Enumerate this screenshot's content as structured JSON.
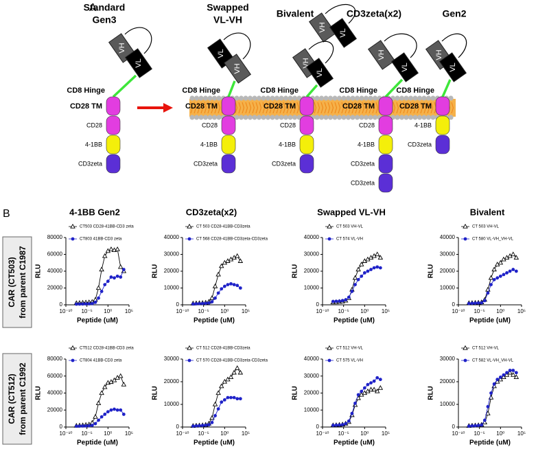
{
  "figure": {
    "panel_a": "A",
    "panel_b": "B",
    "row_labels": [
      [
        "CAR (CT503)",
        "from parent C1987"
      ],
      [
        "CAR (CT512)",
        "from parent C1992"
      ]
    ],
    "constructs": [
      {
        "title": [
          "Standard",
          "Gen3"
        ],
        "scfv": [
          [
            "VH",
            "VL"
          ]
        ],
        "domains": [
          "CD8 Hinge",
          "CD28 TM",
          "CD28",
          "4-1BB",
          "CD3zeta"
        ]
      },
      {
        "title": [
          "Swapped",
          "VL-VH"
        ],
        "scfv": [
          [
            "VL",
            "VH"
          ]
        ],
        "domains": [
          "CD8 Hinge",
          "CD28 TM",
          "CD28",
          "4-1BB",
          "CD3zeta"
        ]
      },
      {
        "title": [
          "Bivalent"
        ],
        "scfv": [
          [
            "VH",
            "VL"
          ],
          [
            "VH",
            "VL"
          ]
        ],
        "domains": [
          "CD8 Hinge",
          "CD28 TM",
          "CD28",
          "4-1BB",
          "CD3zeta"
        ]
      },
      {
        "title": [
          "CD3zeta(x2)"
        ],
        "scfv": [
          [
            "VH",
            "VL"
          ]
        ],
        "domains": [
          "CD8 Hinge",
          "CD28 TM",
          "CD28",
          "4-1BB",
          "CD3zeta",
          "CD3zeta"
        ]
      },
      {
        "title": [
          "Gen2"
        ],
        "scfv": [
          [
            "VH",
            "VL"
          ]
        ],
        "domains": [
          "CD8 Hinge",
          "CD28 TM",
          "4-1BB",
          "CD3zeta"
        ]
      }
    ]
  },
  "chart_data": [
    {
      "type": "scatter",
      "title": "4-1BB Gen2",
      "x_label": "Peptide (uM)",
      "y_label": "RLU",
      "xscale": "log",
      "xlim": [
        1e-10,
        100000.0
      ],
      "xticks": [
        {
          "value": 1e-10,
          "label": "10⁻¹⁰"
        },
        {
          "value": 1e-05,
          "label": "10⁻⁵"
        },
        {
          "value": 1,
          "label": "10⁰"
        },
        {
          "value": 100000.0,
          "label": "10⁵"
        }
      ],
      "ylim": [
        0,
        80000
      ],
      "yticks": [
        0,
        20000,
        40000,
        60000,
        80000
      ],
      "x": [
        3.16e-08,
        1.78e-07,
        1e-06,
        5.62e-06,
        3.16e-05,
        0.000178,
        0.001,
        0.00562,
        0.0316,
        0.178,
        1,
        5.62,
        31.6,
        178,
        1000,
        5620
      ],
      "series": [
        {
          "name": "CT503 CD28-41BB-CD3 zeta",
          "color": "#000000",
          "marker": "triangle-open",
          "values": [
            2000,
            2200,
            2500,
            2800,
            3000,
            3500,
            6000,
            20000,
            42000,
            58000,
            64000,
            66000,
            65000,
            66000,
            45000,
            40000
          ]
        },
        {
          "name": "CT803 41BB-CD3 zeta",
          "color": "#1f22c8",
          "marker": "circle",
          "values": [
            800,
            900,
            1000,
            1100,
            1200,
            1500,
            3000,
            8000,
            16000,
            24000,
            28000,
            33000,
            32000,
            34000,
            33000,
            42000
          ]
        }
      ]
    },
    {
      "type": "scatter",
      "title": "CD3zeta(x2)",
      "x_label": "Peptide (uM)",
      "y_label": "RLU",
      "xscale": "log",
      "xlim": [
        1e-10,
        100000.0
      ],
      "xticks": [
        {
          "value": 1e-10,
          "label": "10⁻¹⁰"
        },
        {
          "value": 1e-05,
          "label": "10⁻⁵"
        },
        {
          "value": 1,
          "label": "10⁰"
        },
        {
          "value": 100000.0,
          "label": "10⁵"
        }
      ],
      "ylim": [
        0,
        40000
      ],
      "yticks": [
        0,
        10000,
        20000,
        30000,
        40000
      ],
      "x": [
        3.16e-08,
        1.78e-07,
        1e-06,
        5.62e-06,
        3.16e-05,
        0.000178,
        0.001,
        0.00562,
        0.0316,
        0.178,
        1,
        5.62,
        31.6,
        178,
        1000,
        5620
      ],
      "series": [
        {
          "name": "CT 503 CD28-41BB-CD3zeta",
          "color": "#000000",
          "marker": "triangle-open",
          "values": [
            800,
            900,
            1000,
            1100,
            1300,
            1800,
            4000,
            11000,
            18000,
            23000,
            25000,
            26000,
            27000,
            28000,
            29000,
            26000
          ]
        },
        {
          "name": "CT 568 CD28-41BB-CD3zeta-CD3zeta",
          "color": "#1f22c8",
          "marker": "circle",
          "values": [
            500,
            600,
            700,
            800,
            900,
            1100,
            1800,
            4000,
            7000,
            9500,
            11000,
            12000,
            12500,
            12000,
            11500,
            10000
          ]
        }
      ]
    },
    {
      "type": "scatter",
      "title": "Swapped VL-VH",
      "x_label": "Peptide (uM)",
      "y_label": "RLU",
      "xscale": "log",
      "xlim": [
        1e-10,
        100000.0
      ],
      "xticks": [
        {
          "value": 1e-10,
          "label": "10⁻¹⁰"
        },
        {
          "value": 1e-05,
          "label": "10⁻⁵"
        },
        {
          "value": 1,
          "label": "10⁰"
        },
        {
          "value": 100000.0,
          "label": "10⁵"
        }
      ],
      "ylim": [
        0,
        40000
      ],
      "yticks": [
        0,
        10000,
        20000,
        30000,
        40000
      ],
      "x": [
        3.16e-08,
        1.78e-07,
        1e-06,
        5.62e-06,
        3.16e-05,
        0.000178,
        0.001,
        0.00562,
        0.0316,
        0.178,
        1,
        5.62,
        31.6,
        178,
        1000,
        5620
      ],
      "series": [
        {
          "name": "CT 503 VH-VL",
          "color": "#000000",
          "marker": "triangle-open",
          "values": [
            1500,
            1600,
            1800,
            2000,
            2500,
            4000,
            9000,
            16000,
            21000,
            24000,
            26000,
            27000,
            28000,
            29000,
            30000,
            28000
          ]
        },
        {
          "name": "CT 574 VL-VH",
          "color": "#1f22c8",
          "marker": "circle",
          "values": [
            2000,
            2100,
            2200,
            2500,
            3000,
            4500,
            8000,
            12000,
            15000,
            17000,
            19000,
            20000,
            21000,
            22000,
            22500,
            22000
          ]
        }
      ]
    },
    {
      "type": "scatter",
      "title": "Bivalent",
      "x_label": "Peptide (uM)",
      "y_label": "RLU",
      "xscale": "log",
      "xlim": [
        1e-10,
        100000.0
      ],
      "xticks": [
        {
          "value": 1e-10,
          "label": "10⁻¹⁰"
        },
        {
          "value": 1e-05,
          "label": "10⁻⁵"
        },
        {
          "value": 1,
          "label": "10⁰"
        },
        {
          "value": 100000.0,
          "label": "10⁵"
        }
      ],
      "ylim": [
        0,
        40000
      ],
      "yticks": [
        0,
        10000,
        20000,
        30000,
        40000
      ],
      "x": [
        3.16e-08,
        1.78e-07,
        1e-06,
        5.62e-06,
        3.16e-05,
        0.000178,
        0.001,
        0.00562,
        0.0316,
        0.178,
        1,
        5.62,
        31.6,
        178,
        1000,
        5620
      ],
      "series": [
        {
          "name": "CT 503 VH-VL",
          "color": "#000000",
          "marker": "triangle-open",
          "values": [
            1000,
            1100,
            1200,
            1300,
            1500,
            3000,
            9000,
            16000,
            21000,
            24000,
            25000,
            27000,
            28000,
            29000,
            30000,
            28000
          ]
        },
        {
          "name": "CT 580 VL-VH_VH-VL",
          "color": "#1f22c8",
          "marker": "circle",
          "values": [
            800,
            900,
            1000,
            1100,
            1200,
            2500,
            7000,
            12000,
            15000,
            16000,
            17000,
            18000,
            19000,
            20000,
            21000,
            20000
          ]
        }
      ]
    },
    {
      "type": "scatter",
      "x_label": "Peptide (uM)",
      "y_label": "RLU",
      "xscale": "log",
      "xlim": [
        1e-10,
        100000.0
      ],
      "xticks": [
        {
          "value": 1e-10,
          "label": "10⁻¹⁰"
        },
        {
          "value": 1e-05,
          "label": "10⁻⁵"
        },
        {
          "value": 1,
          "label": "10⁰"
        },
        {
          "value": 100000.0,
          "label": "10⁵"
        }
      ],
      "ylim": [
        0,
        80000
      ],
      "yticks": [
        0,
        20000,
        40000,
        60000,
        80000
      ],
      "x": [
        3.16e-08,
        1.78e-07,
        1e-06,
        5.62e-06,
        3.16e-05,
        0.000178,
        0.001,
        0.00562,
        0.0316,
        0.178,
        1,
        5.62,
        31.6,
        178,
        1000,
        5620
      ],
      "series": [
        {
          "name": "CT512 CD28-41BB-CD3 zeta",
          "color": "#000000",
          "marker": "triangle-open",
          "values": [
            1500,
            1800,
            2000,
            2500,
            3000,
            5000,
            12000,
            28000,
            40000,
            47000,
            52000,
            53000,
            55000,
            58000,
            60000,
            50000
          ]
        },
        {
          "name": "CT804 41BB-CD3 zeta",
          "color": "#1f22c8",
          "marker": "circle",
          "values": [
            1000,
            1100,
            1200,
            1300,
            1500,
            2000,
            4000,
            8000,
            12000,
            15000,
            18000,
            20000,
            21000,
            20000,
            20000,
            15000
          ]
        }
      ]
    },
    {
      "type": "scatter",
      "x_label": "Peptide (uM)",
      "y_label": "RLU",
      "xscale": "log",
      "xlim": [
        1e-10,
        100000.0
      ],
      "xticks": [
        {
          "value": 1e-10,
          "label": "10⁻¹⁰"
        },
        {
          "value": 1e-05,
          "label": "10⁻⁵"
        },
        {
          "value": 1,
          "label": "10⁰"
        },
        {
          "value": 100000.0,
          "label": "10⁵"
        }
      ],
      "ylim": [
        0,
        30000
      ],
      "yticks": [
        0,
        10000,
        20000,
        30000
      ],
      "x": [
        3.16e-08,
        1.78e-07,
        1e-06,
        5.62e-06,
        3.16e-05,
        0.000178,
        0.001,
        0.00562,
        0.0316,
        0.178,
        1,
        5.62,
        31.6,
        178,
        1000,
        5620
      ],
      "series": [
        {
          "name": "CT 512 CD28-41BB-CD3zeta",
          "color": "#000000",
          "marker": "triangle-open",
          "values": [
            500,
            600,
            700,
            800,
            1000,
            1500,
            4000,
            10000,
            15000,
            18000,
            20000,
            21000,
            22000,
            24000,
            26000,
            24000
          ]
        },
        {
          "name": "CT 570 CD28-41BB-CD3zeta-CD3zeta",
          "color": "#1f22c8",
          "marker": "circle",
          "values": [
            400,
            500,
            600,
            700,
            800,
            1000,
            2000,
            5000,
            8000,
            11000,
            12000,
            13000,
            13000,
            13000,
            12500,
            12500
          ]
        }
      ]
    },
    {
      "type": "scatter",
      "x_label": "Peptide (uM)",
      "y_label": "RLU",
      "xscale": "log",
      "xlim": [
        1e-10,
        100000.0
      ],
      "xticks": [
        {
          "value": 1e-10,
          "label": "10⁻¹⁰"
        },
        {
          "value": 1e-05,
          "label": "10⁻⁵"
        },
        {
          "value": 1,
          "label": "10⁰"
        },
        {
          "value": 100000.0,
          "label": "10⁵"
        }
      ],
      "ylim": [
        0,
        40000
      ],
      "yticks": [
        0,
        10000,
        20000,
        30000,
        40000
      ],
      "x": [
        3.16e-08,
        1.78e-07,
        1e-06,
        5.62e-06,
        3.16e-05,
        0.000178,
        0.001,
        0.00562,
        0.0316,
        0.178,
        1,
        5.62,
        31.6,
        178,
        1000,
        5620
      ],
      "series": [
        {
          "name": "CT 512 VH-VL",
          "color": "#000000",
          "marker": "triangle-open",
          "values": [
            1000,
            1100,
            1300,
            1500,
            2000,
            3000,
            7000,
            13000,
            17000,
            19000,
            20000,
            21000,
            22000,
            22000,
            21000,
            23000
          ]
        },
        {
          "name": "CT 575 VL-VH",
          "color": "#1f22c8",
          "marker": "circle",
          "values": [
            1000,
            1100,
            1200,
            1400,
            2000,
            3500,
            8000,
            14000,
            19000,
            21000,
            23000,
            25000,
            26000,
            27000,
            29000,
            28000
          ]
        }
      ]
    },
    {
      "type": "scatter",
      "x_label": "Peptide (uM)",
      "y_label": "RLU",
      "xscale": "log",
      "xlim": [
        1e-10,
        100000.0
      ],
      "xticks": [
        {
          "value": 1e-10,
          "label": "10⁻¹⁰"
        },
        {
          "value": 1e-05,
          "label": "10⁻⁵"
        },
        {
          "value": 1,
          "label": "10⁰"
        },
        {
          "value": 100000.0,
          "label": "10⁵"
        }
      ],
      "ylim": [
        0,
        30000
      ],
      "yticks": [
        0,
        10000,
        20000,
        30000
      ],
      "x": [
        3.16e-08,
        1.78e-07,
        1e-06,
        5.62e-06,
        3.16e-05,
        0.000178,
        0.001,
        0.00562,
        0.0316,
        0.178,
        1,
        5.62,
        31.6,
        178,
        1000,
        5620
      ],
      "series": [
        {
          "name": "CT 512  VH-VL",
          "color": "#000000",
          "marker": "triangle-open",
          "values": [
            500,
            600,
            700,
            800,
            1000,
            2000,
            6000,
            13000,
            18000,
            20000,
            21000,
            22000,
            23000,
            24000,
            23000,
            22000
          ]
        },
        {
          "name": "CT 582 VL-VH_VH-VL",
          "color": "#1f22c8",
          "marker": "circle",
          "values": [
            400,
            500,
            600,
            700,
            900,
            3000,
            9000,
            15000,
            19000,
            21000,
            22000,
            23000,
            24000,
            25000,
            25000,
            24000
          ]
        }
      ]
    }
  ]
}
